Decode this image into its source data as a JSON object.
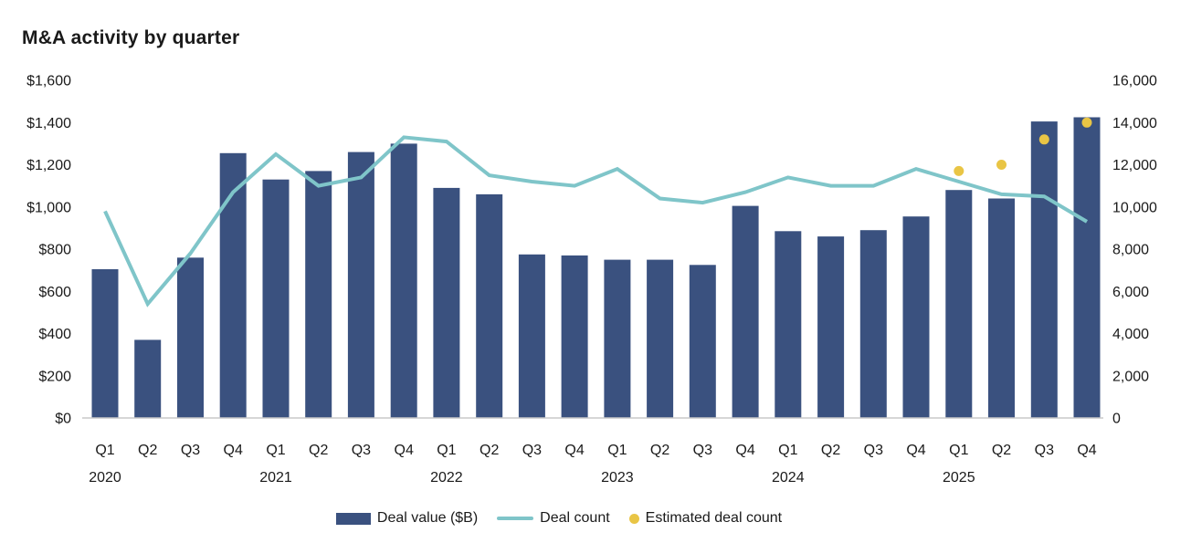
{
  "title": "M&A activity by quarter",
  "legend": {
    "deal_value_label": "Deal value ($B)",
    "deal_count_label": "Deal count",
    "estimated_label": "Estimated deal count"
  },
  "colors": {
    "bar": "#3A517F",
    "line": "#7FC5C9",
    "dot": "#E9C545",
    "axis_line": "#C9C9C9",
    "text": "#1A1A1A"
  },
  "chart_data": {
    "type": "bar",
    "title": "M&A activity by quarter",
    "categories": [
      "Q1",
      "Q2",
      "Q3",
      "Q4",
      "Q1",
      "Q2",
      "Q3",
      "Q4",
      "Q1",
      "Q2",
      "Q3",
      "Q4",
      "Q1",
      "Q2",
      "Q3",
      "Q4",
      "Q1",
      "Q2",
      "Q3",
      "Q4",
      "Q1",
      "Q2",
      "Q3",
      "Q4"
    ],
    "years": [
      {
        "label": "2020",
        "quarter_index": 0
      },
      {
        "label": "2021",
        "quarter_index": 4
      },
      {
        "label": "2022",
        "quarter_index": 8
      },
      {
        "label": "2023",
        "quarter_index": 12
      },
      {
        "label": "2024",
        "quarter_index": 16
      },
      {
        "label": "2025",
        "quarter_index": 20
      }
    ],
    "left_axis": {
      "min": 0,
      "max": 1600,
      "step": 200,
      "prefix": "$"
    },
    "right_axis": {
      "min": 0,
      "max": 16000,
      "step": 2000,
      "prefix": ""
    },
    "grid": false,
    "legend_position": "bottom",
    "series": [
      {
        "name": "Deal value ($B)",
        "type": "bar",
        "axis": "left",
        "color": "#3A517F",
        "values": [
          705,
          370,
          760,
          1255,
          1130,
          1170,
          1260,
          1300,
          1090,
          1060,
          775,
          770,
          750,
          750,
          725,
          1005,
          885,
          860,
          890,
          955,
          1080,
          1040,
          1405,
          1425
        ]
      },
      {
        "name": "Deal count",
        "type": "line",
        "axis": "right",
        "color": "#7FC5C9",
        "values": [
          9800,
          5400,
          7800,
          10700,
          12500,
          11000,
          11400,
          13300,
          13100,
          11500,
          11200,
          11000,
          11800,
          10400,
          10200,
          10700,
          11400,
          11000,
          11000,
          11800,
          11200,
          10600,
          10500,
          9300
        ]
      },
      {
        "name": "Estimated deal count",
        "type": "scatter",
        "axis": "right",
        "color": "#E9C545",
        "points": [
          {
            "quarter_index": 20,
            "value": 11700
          },
          {
            "quarter_index": 21,
            "value": 12000
          },
          {
            "quarter_index": 22,
            "value": 13200
          },
          {
            "quarter_index": 23,
            "value": 14000
          }
        ]
      }
    ]
  }
}
